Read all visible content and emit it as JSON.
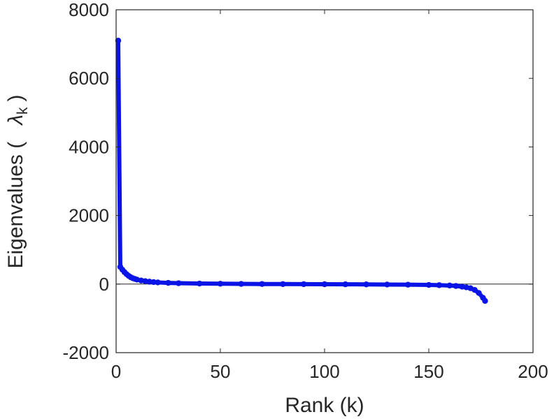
{
  "chart_data": {
    "type": "line",
    "title": "",
    "xlabel": "Rank (k)",
    "ylabel_prefix": "Eigenvalues (",
    "ylabel_symbol": "λ",
    "ylabel_subscript": "k",
    "ylabel_suffix": ")",
    "xlim": [
      0,
      200
    ],
    "ylim": [
      -2000,
      8000
    ],
    "xticks": [
      0,
      50,
      100,
      150,
      200
    ],
    "xtick_labels": [
      "0",
      "50",
      "100",
      "150",
      "200"
    ],
    "yticks": [
      -2000,
      0,
      2000,
      4000,
      6000,
      8000
    ],
    "ytick_labels": [
      "-2000",
      "0",
      "2000",
      "4000",
      "6000",
      "8000"
    ],
    "zero_line": true,
    "grid": false,
    "marker": "circle",
    "color": "#0a14e6",
    "series": [
      {
        "x": [
          1,
          2,
          3,
          4,
          5,
          6,
          7,
          8,
          9,
          10,
          12,
          14,
          16,
          18,
          20,
          25,
          30,
          40,
          50,
          60,
          70,
          80,
          90,
          100,
          110,
          120,
          130,
          140,
          150,
          155,
          160,
          163,
          166,
          168,
          170,
          172,
          174,
          176,
          177
        ],
        "y": [
          7100,
          500,
          420,
          350,
          290,
          240,
          200,
          170,
          150,
          130,
          105,
          85,
          70,
          58,
          48,
          35,
          26,
          16,
          10,
          5,
          2,
          0,
          -2,
          -4,
          -6,
          -9,
          -13,
          -18,
          -25,
          -32,
          -42,
          -55,
          -75,
          -95,
          -120,
          -170,
          -260,
          -400,
          -490
        ]
      }
    ]
  }
}
